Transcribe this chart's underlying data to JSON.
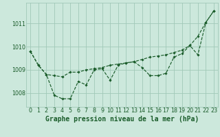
{
  "title": "Graphe pression niveau de la mer (hPa)",
  "hours": [
    0,
    1,
    2,
    3,
    4,
    5,
    6,
    7,
    8,
    9,
    10,
    11,
    12,
    13,
    14,
    15,
    16,
    17,
    18,
    19,
    20,
    21,
    22,
    23
  ],
  "line1": [
    1009.8,
    1009.2,
    1008.8,
    1007.9,
    1007.75,
    1007.75,
    1008.5,
    1008.35,
    1009.0,
    1009.05,
    1008.55,
    1009.2,
    1009.3,
    1009.35,
    1009.1,
    1008.75,
    1008.75,
    1008.85,
    1009.55,
    1009.7,
    1010.05,
    1009.65,
    1011.05,
    1011.55
  ],
  "line2": [
    1009.8,
    1009.2,
    1008.8,
    1008.75,
    1008.7,
    1008.9,
    1008.9,
    1009.0,
    1009.05,
    1009.1,
    1009.2,
    1009.25,
    1009.3,
    1009.35,
    1009.45,
    1009.55,
    1009.6,
    1009.65,
    1009.75,
    1009.85,
    1010.05,
    1010.45,
    1011.05,
    1011.55
  ],
  "ylim_min": 1007.4,
  "ylim_max": 1011.9,
  "yticks": [
    1008,
    1009,
    1010,
    1011
  ],
  "bg_color": "#cce8dc",
  "grid_color": "#a0c8b8",
  "line_color": "#1a5c2a",
  "title_fontsize": 7.0,
  "tick_fontsize": 5.8,
  "fig_width": 3.2,
  "fig_height": 2.0,
  "dpi": 100
}
